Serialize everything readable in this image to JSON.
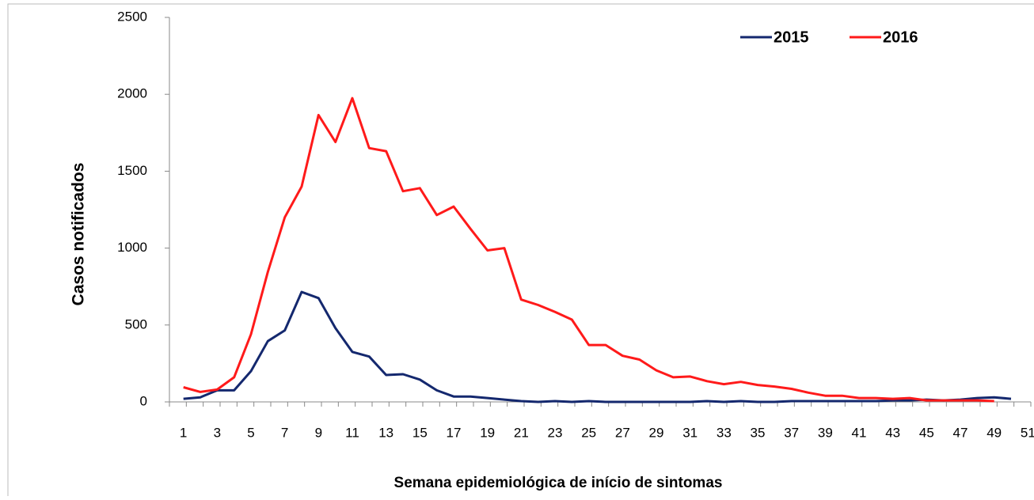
{
  "chart_data": {
    "type": "line",
    "x_label": "Semana epidemiológica de início de sintomas",
    "y_label": "Casos  notificados",
    "categories": [
      1,
      null,
      3,
      null,
      5,
      null,
      7,
      null,
      9,
      null,
      11,
      null,
      13,
      null,
      15,
      null,
      17,
      null,
      19,
      null,
      21,
      null,
      23,
      null,
      25,
      null,
      27,
      null,
      29,
      null,
      31,
      null,
      33,
      null,
      35,
      null,
      37,
      null,
      39,
      null,
      41,
      null,
      43,
      null,
      45,
      null,
      47,
      null,
      49,
      null,
      51
    ],
    "series": [
      {
        "name": "2015",
        "color": "#14286e",
        "values": [
          20,
          30,
          75,
          75,
          200,
          395,
          465,
          715,
          675,
          480,
          325,
          295,
          175,
          180,
          145,
          75,
          35,
          35,
          25,
          15,
          5,
          0,
          5,
          0,
          5,
          0,
          0,
          0,
          0,
          0,
          0,
          5,
          0,
          5,
          0,
          0,
          5,
          5,
          5,
          5,
          5,
          5,
          10,
          10,
          15,
          10,
          15,
          25,
          30,
          20,
          null
        ]
      },
      {
        "name": "2016",
        "color": "#ff1a1a",
        "values": [
          95,
          65,
          80,
          160,
          440,
          845,
          1200,
          1400,
          1865,
          1690,
          1975,
          1650,
          1630,
          1370,
          1390,
          1215,
          1270,
          1125,
          985,
          1000,
          665,
          630,
          585,
          535,
          370,
          370,
          300,
          275,
          205,
          160,
          165,
          135,
          115,
          130,
          110,
          100,
          85,
          60,
          40,
          40,
          25,
          25,
          20,
          25,
          10,
          10,
          10,
          10,
          5,
          null,
          null
        ]
      }
    ],
    "ylim": [
      0,
      2500
    ],
    "yticks": [
      0,
      500,
      1000,
      1500,
      2000,
      2500
    ],
    "legend": "top-right"
  }
}
